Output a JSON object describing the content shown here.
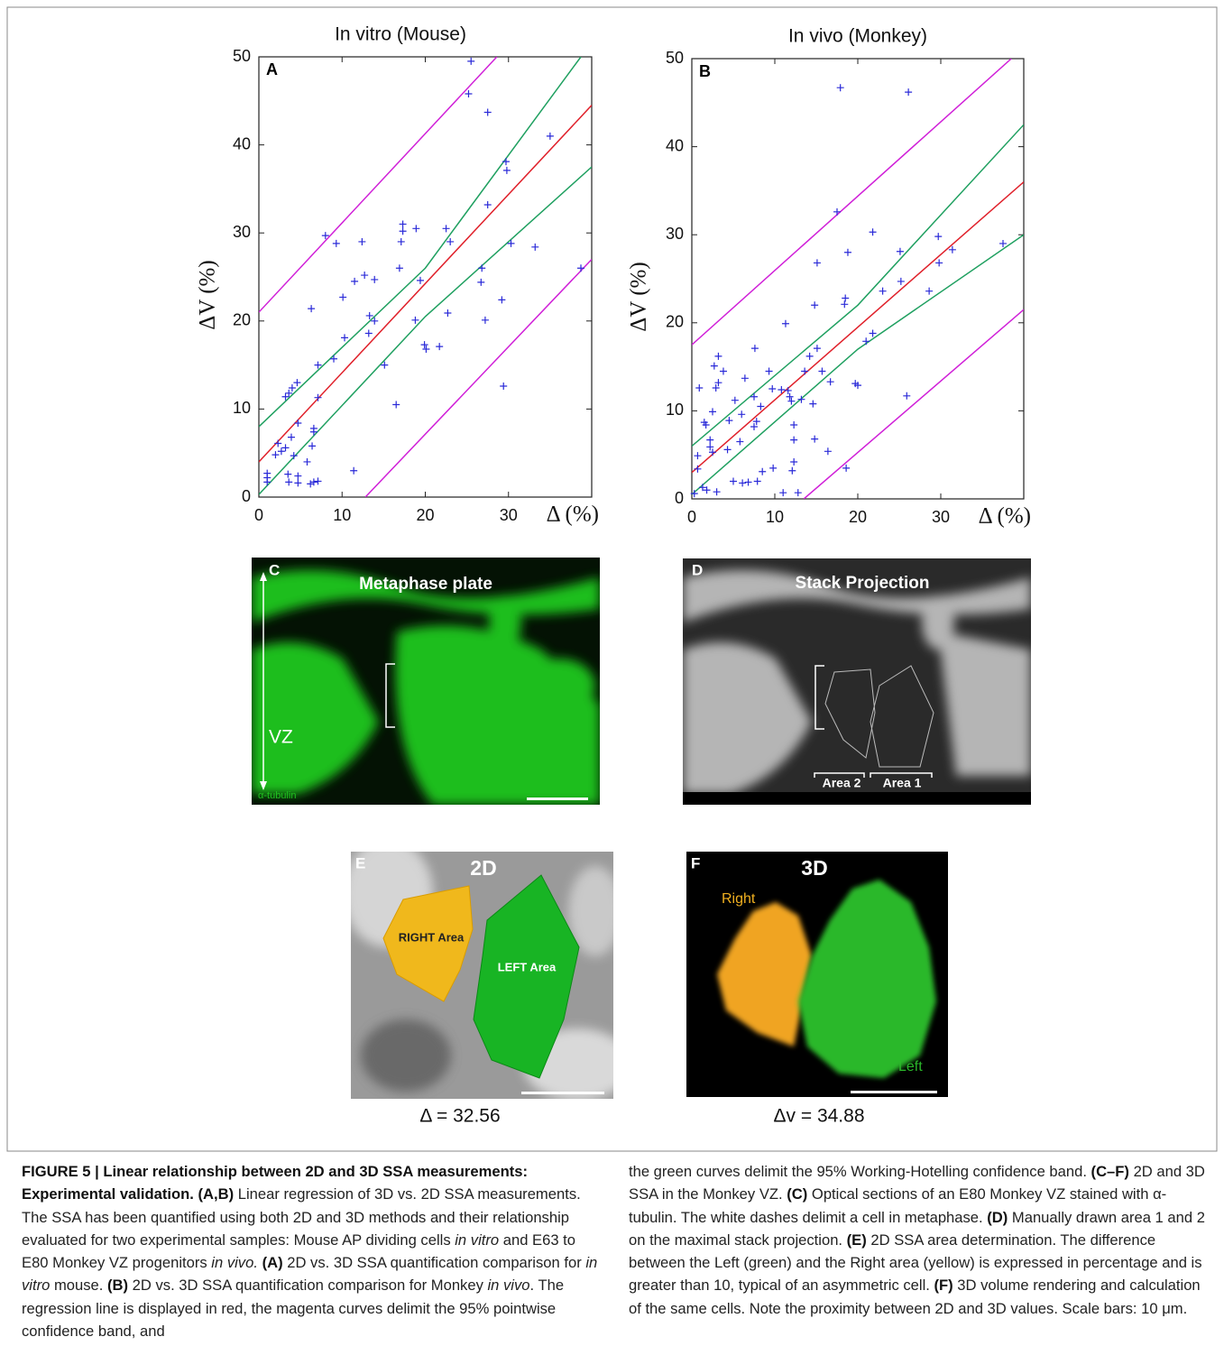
{
  "chart_data": [
    {
      "type": "scatter",
      "panel_label": "A",
      "title": "In vitro (Mouse)",
      "x_label": "Δ (%)",
      "y_label": "ΔV (%)",
      "xlim": [
        0,
        40
      ],
      "ylim": [
        0,
        50
      ],
      "xticks": [
        0,
        10,
        20,
        30
      ],
      "yticks": [
        0,
        10,
        20,
        30,
        40,
        50
      ],
      "points": {
        "color": "#2a2ad8",
        "x": [
          25.5,
          25.2,
          27.5,
          35,
          29.7,
          29.8,
          27.5,
          38.7,
          33.2,
          30.3,
          26.8,
          26.7,
          27.2,
          29.2,
          29.4,
          22.5,
          23,
          22.7,
          21.7,
          19.9,
          20.1,
          18.9,
          19.4,
          18.8,
          17.3,
          17.3,
          17.1,
          16.9,
          16.5,
          15.1,
          13.9,
          13.9,
          13.3,
          13.2,
          12.7,
          12.4,
          11.5,
          10.1,
          10.3,
          9.3,
          8,
          9,
          7.1,
          7.1,
          6.3,
          6.6,
          6.6,
          6.4,
          5.8,
          6.6,
          6.2,
          4.6,
          4.0,
          3.6,
          3.2,
          4.7,
          3.9,
          4.2,
          3.2,
          2.7,
          2.3,
          2,
          1,
          1,
          1,
          3.5,
          3.6,
          4.7,
          4.7,
          11.4,
          7.1
        ],
        "values": [
          49.5,
          45.8,
          43.7,
          41,
          38.1,
          37.1,
          33.2,
          26,
          28.4,
          28.8,
          26,
          24.4,
          20.1,
          22.4,
          12.6,
          30.5,
          29,
          20.9,
          17.1,
          17.3,
          16.8,
          30.5,
          24.6,
          20.1,
          31,
          30.2,
          29,
          26,
          10.5,
          15,
          24.7,
          20,
          20.6,
          18.6,
          25.2,
          29,
          24.5,
          22.7,
          18.1,
          28.8,
          29.7,
          15.7,
          15,
          11.3,
          21.4,
          7.8,
          7.4,
          5.8,
          4,
          1.7,
          1.5,
          13,
          12.4,
          11.8,
          11.4,
          8.4,
          6.8,
          4.7,
          5.6,
          5.2,
          6.1,
          4.8,
          2.7,
          2.2,
          1.7,
          2.6,
          1.7,
          2.4,
          1.6,
          3,
          1.8
        ]
      },
      "lines": [
        {
          "color": "#e0202a",
          "x": [
            0,
            40
          ],
          "values": [
            4,
            44.5
          ]
        },
        {
          "color": "#d020d8",
          "x": [
            0,
            28.6
          ],
          "values": [
            21,
            50
          ]
        },
        {
          "color": "#d020d8",
          "x": [
            12.8,
            40
          ],
          "values": [
            0,
            27
          ]
        },
        {
          "color": "#1fa060",
          "x": [
            0,
            20,
            38.7
          ],
          "values": [
            8,
            26,
            50
          ]
        },
        {
          "color": "#1fa060",
          "x": [
            0,
            20,
            40
          ],
          "values": [
            0.3,
            20.5,
            37.5
          ]
        }
      ]
    },
    {
      "type": "scatter",
      "panel_label": "B",
      "title": "In vivo (Monkey)",
      "x_label": "Δ (%)",
      "y_label": "ΔV (%)",
      "xlim": [
        0,
        40
      ],
      "ylim": [
        0,
        50
      ],
      "xticks": [
        0,
        10,
        20,
        30
      ],
      "yticks": [
        0,
        10,
        20,
        30,
        40,
        50
      ],
      "points": {
        "color": "#2a2ad8",
        "x": [
          17.9,
          26.1,
          17.5,
          21.8,
          29.7,
          25.1,
          18.8,
          31.4,
          37.5,
          29.8,
          15.1,
          28.6,
          25.2,
          23,
          18.5,
          18.4,
          14.8,
          21.8,
          21,
          11.3,
          7.6,
          15.1,
          14.2,
          3.2,
          13.6,
          15.7,
          16.7,
          19.7,
          20,
          2.7,
          3.8,
          3.2,
          2.9,
          0.9,
          6.4,
          9.3,
          9.7,
          10.8,
          11.6,
          11.8,
          12,
          13.2,
          14.6,
          7.5,
          5.2,
          8.3,
          6,
          1.5,
          1.7,
          2.5,
          7.8,
          7.5,
          4.5,
          12.3,
          12.3,
          14.8,
          16.4,
          0.7,
          2.2,
          2.2,
          2.5,
          4.3,
          5.8,
          0.7,
          1.3,
          1.8,
          3,
          0.3,
          5,
          6.1,
          6.8,
          7.9,
          8.5,
          9.8,
          12.1,
          11,
          12.8,
          12.3,
          18.6,
          25.9
        ],
        "values": [
          46.7,
          46.2,
          32.6,
          30.3,
          29.8,
          28.1,
          28,
          28.3,
          29,
          26.8,
          26.8,
          23.6,
          24.7,
          23.6,
          22.8,
          22.1,
          22,
          18.8,
          17.9,
          19.9,
          17.1,
          17.1,
          16.2,
          16.2,
          14.5,
          14.5,
          13.3,
          13.1,
          12.9,
          15.1,
          14.5,
          13.2,
          12.6,
          12.6,
          13.7,
          14.5,
          12.5,
          12.4,
          12.3,
          11.6,
          11.1,
          11.3,
          10.8,
          11.6,
          11.2,
          10.5,
          9.6,
          8.7,
          8.4,
          9.9,
          8.8,
          8.2,
          8.9,
          8.4,
          6.7,
          6.8,
          5.4,
          4.9,
          6.7,
          5.9,
          5.3,
          5.6,
          6.5,
          3.4,
          1.3,
          1,
          0.8,
          0.6,
          2,
          1.8,
          1.9,
          2,
          3.1,
          3.5,
          3.2,
          0.7,
          0.7,
          4.2,
          3.5,
          11.7
        ]
      },
      "lines": [
        {
          "color": "#e0202a",
          "x": [
            0,
            40
          ],
          "values": [
            3,
            36
          ]
        },
        {
          "color": "#d020d8",
          "x": [
            0,
            38.5
          ],
          "values": [
            17.5,
            50
          ]
        },
        {
          "color": "#d020d8",
          "x": [
            13.5,
            40
          ],
          "values": [
            0,
            21.5
          ]
        },
        {
          "color": "#1fa060",
          "x": [
            0,
            20,
            40
          ],
          "values": [
            6,
            22,
            42.5
          ]
        },
        {
          "color": "#1fa060",
          "x": [
            0,
            20,
            40
          ],
          "values": [
            0.5,
            17,
            30
          ]
        }
      ]
    }
  ],
  "panels": {
    "c": {
      "label": "C",
      "title": "Metaphase plate",
      "zone": "VZ",
      "stain": "α-tubulin"
    },
    "d": {
      "label": "D",
      "title": "Stack Projection",
      "area2": "Area 2",
      "area1": "Area 1"
    },
    "e": {
      "label": "E",
      "title": "2D",
      "right": "RIGHT Area",
      "left": "LEFT Area",
      "value": "Δ = 32.56"
    },
    "f": {
      "label": "F",
      "title": "3D",
      "right": "Right",
      "left": "Left",
      "value": "Δv = 34.88"
    }
  },
  "caption": {
    "left": [
      "FIGURE 5 | Linear relationship between 2D and 3D SSA measurements: Experimental validation. (A,B)",
      " Linear regression of 3D vs. 2D SSA measurements. The SSA has been quantified using both 2D and 3D methods and their relationship evaluated for two experimental samples: Mouse AP dividing cells ",
      "in vitro",
      " and E63 to E80 Monkey VZ progenitors ",
      "in vivo.",
      " (A)",
      " 2D vs. 3D SSA quantification comparison for ",
      "in vitro",
      " mouse. ",
      "(B)",
      " 2D vs. 3D SSA quantification comparison for Monkey ",
      "in vivo",
      ". The regression line is displayed in red, the magenta curves delimit the 95% pointwise confidence band, and"
    ],
    "right": [
      "the green curves delimit the 95% Working-Hotelling confidence band. ",
      "(C–F)",
      " 2D and 3D SSA in the Monkey VZ. ",
      "(C)",
      " Optical sections of an E80 Monkey VZ stained with α-tubulin. The white dashes delimit a cell in metaphase. ",
      "(D)",
      " Manually drawn area 1 and 2 on the maximal stack projection. ",
      "(E)",
      " 2D SSA area determination. The difference between the Left (green) and the Right area (yellow) is expressed in percentage and is greater than 10, typical of an asymmetric cell. ",
      "(F)",
      " 3D volume rendering and calculation of the same cells. Note the proximity between 2D and 3D values. Scale bars: 10 μm."
    ]
  }
}
